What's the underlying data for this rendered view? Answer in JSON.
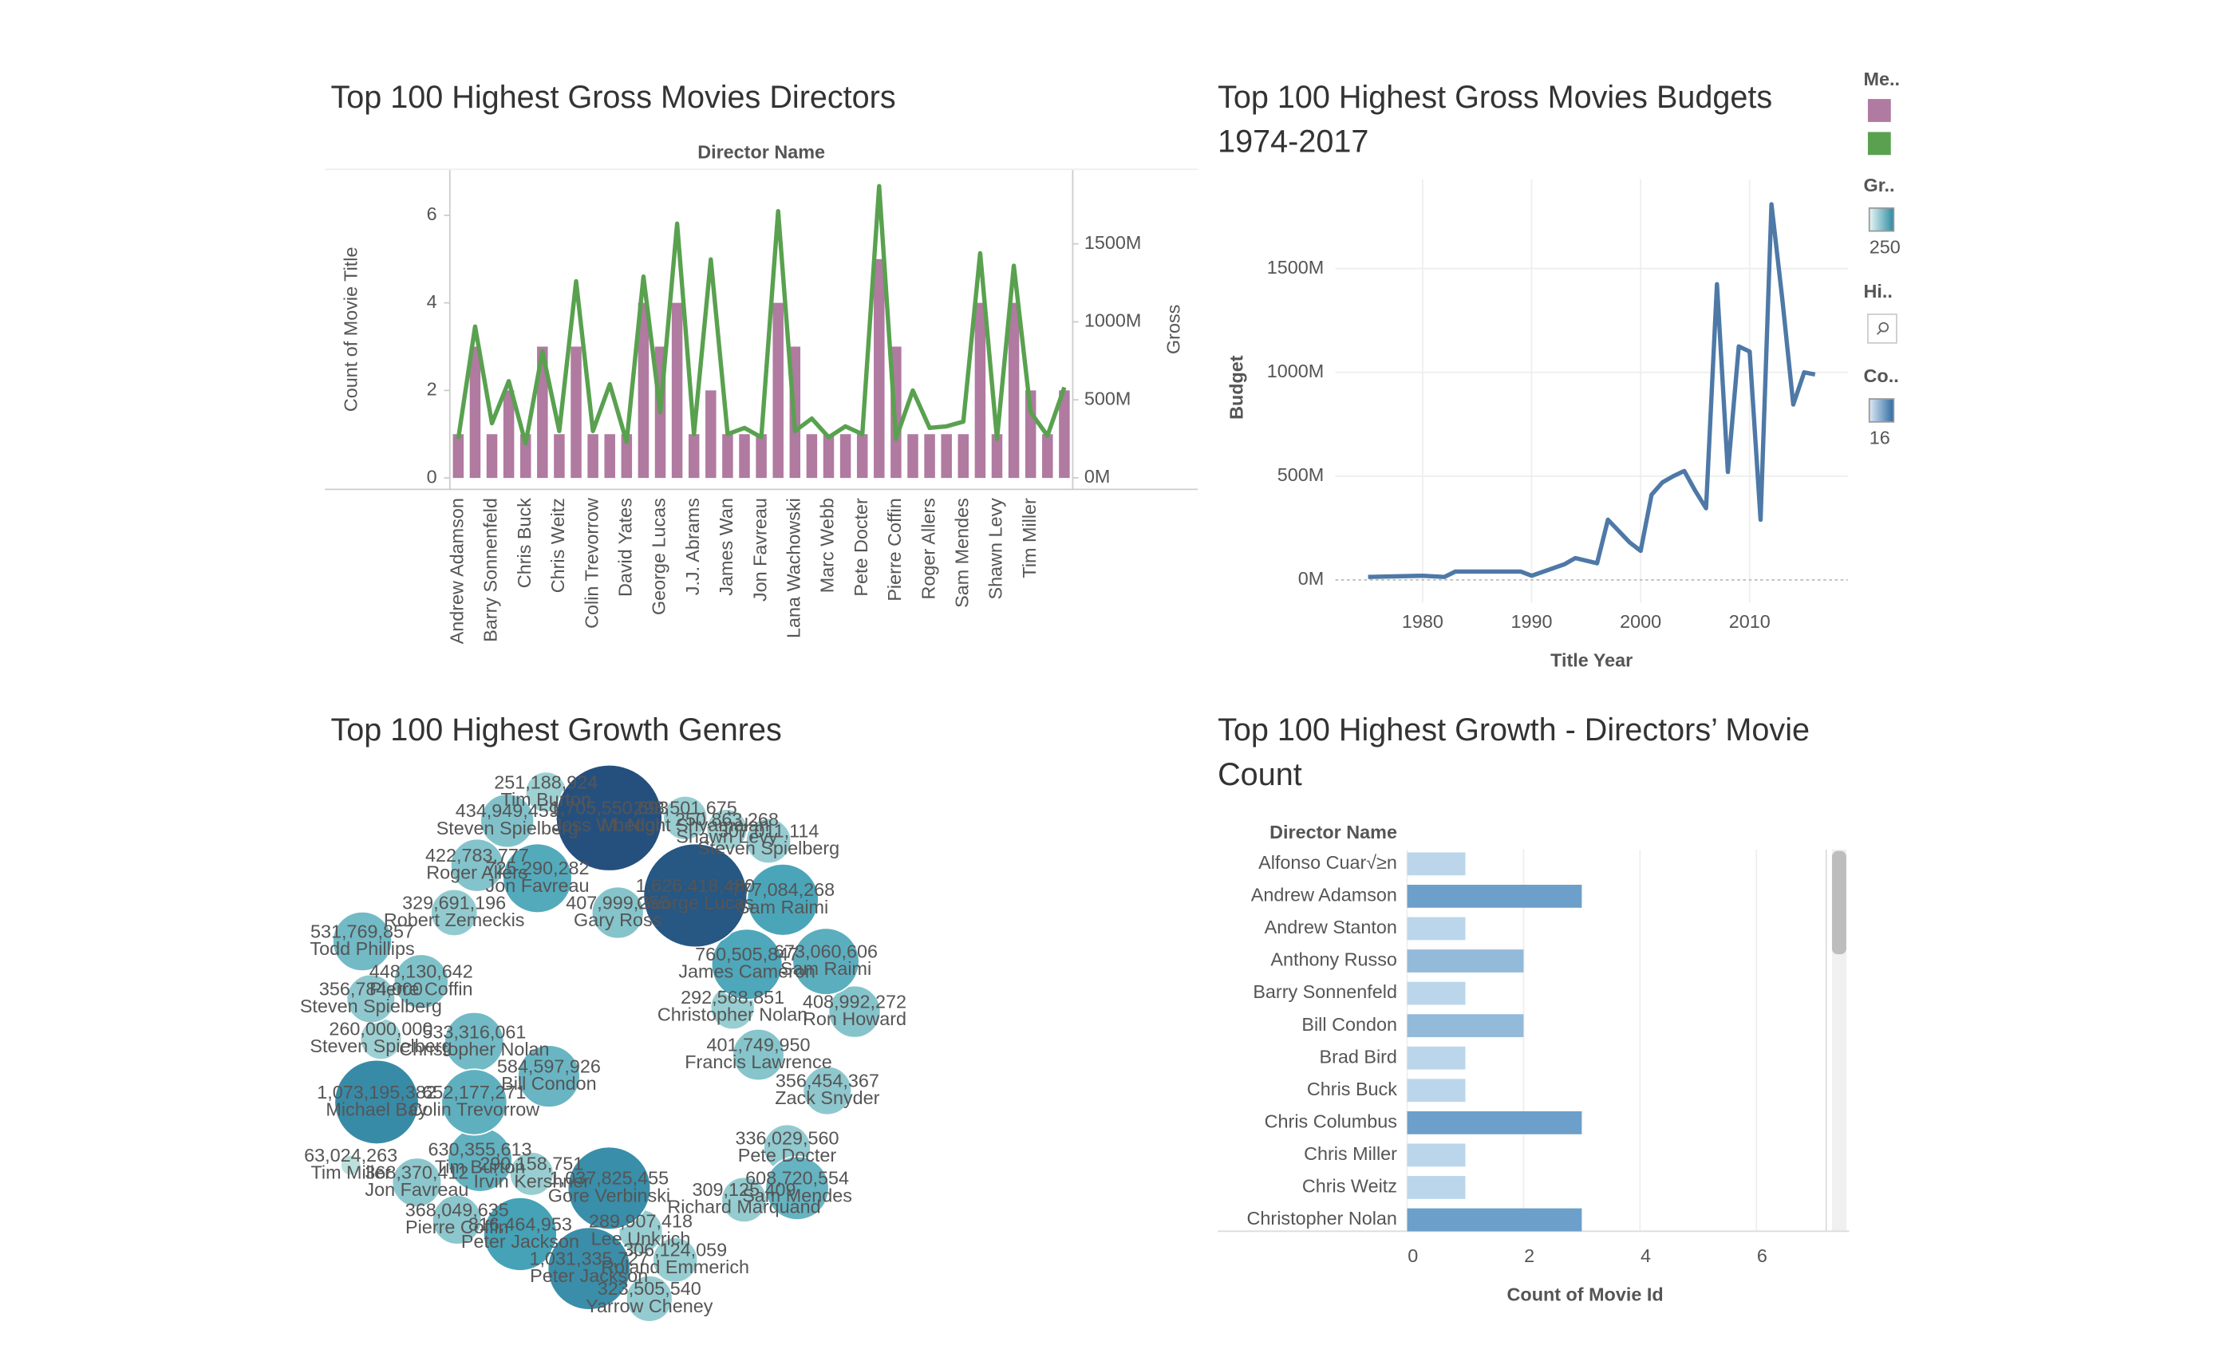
{
  "chart_data": [
    {
      "type": "bar",
      "title": "Top 100 Highest Gross Movies Directors",
      "x_label": "Director Name",
      "y_label": "Count of Movie Title",
      "y2_label": "Gross",
      "categories": [
        "Andrew Adamson",
        null,
        "Barry Sonnenfeld",
        null,
        "Chris Buck",
        null,
        "Chris Weitz",
        null,
        "Colin Trevorrow",
        null,
        "David Yates",
        null,
        "George Lucas",
        null,
        "J.J. Abrams",
        null,
        "James Wan",
        null,
        "Jon Favreau",
        null,
        "Lana Wachowski",
        null,
        "Marc Webb",
        null,
        "Pete Docter",
        null,
        "Pierre Coffin",
        null,
        "Roger Allers",
        null,
        "Sam Mendes",
        null,
        "Shawn Levy",
        null,
        "Tim Miller",
        null,
        null
      ],
      "series": [
        {
          "color": "#b07aa1",
          "values": [
            1,
            3,
            1,
            2,
            1,
            3,
            1,
            3,
            1,
            1,
            1,
            4,
            3,
            4,
            1,
            2,
            1,
            1,
            1,
            4,
            3,
            1,
            1,
            1,
            1,
            5,
            3,
            1,
            1,
            1,
            1,
            4,
            1,
            4,
            2,
            1,
            2
          ]
        },
        {
          "color": "#59a14f",
          "mark": "line",
          "axis": "y2",
          "values": [
            250000000,
            970000000,
            350000000,
            620000000,
            220000000,
            810000000,
            300000000,
            1260000000,
            300000000,
            600000000,
            230000000,
            1290000000,
            420000000,
            1630000000,
            280000000,
            1400000000,
            280000000,
            320000000,
            260000000,
            1710000000,
            300000000,
            380000000,
            260000000,
            330000000,
            280000000,
            1870000000,
            250000000,
            560000000,
            320000000,
            330000000,
            360000000,
            1440000000,
            250000000,
            1360000000,
            420000000,
            270000000,
            580000000
          ]
        }
      ],
      "ylim": [
        -0.26,
        7.05
      ],
      "yticks": [
        0,
        2,
        4,
        6
      ],
      "y2lim": [
        -74000000,
        1978000000
      ],
      "y2ticks": [
        {
          "value": 0,
          "label": "0M"
        },
        {
          "value": 500000000,
          "label": "500M"
        },
        {
          "value": 1000000000,
          "label": "1000M"
        },
        {
          "value": 1500000000,
          "label": "1500M"
        }
      ]
    },
    {
      "type": "line",
      "title": "Top 100 Highest Gross Movies Budgets 1974-2017",
      "x_label": "Title Year",
      "y_label": "Budget",
      "color": "#4e79a7",
      "grid": true,
      "x": [
        1975,
        1980,
        1982,
        1983,
        1989,
        1990,
        1993,
        1994,
        1996,
        1997,
        1999,
        2000,
        2001,
        2002,
        2003,
        2004,
        2005,
        2006,
        2007,
        2008,
        2009,
        2010,
        2011,
        2012,
        2013,
        2014,
        2015,
        2016
      ],
      "values": [
        14000000,
        20000000,
        14000000,
        40000000,
        40000000,
        20000000,
        75000000,
        105000000,
        80000000,
        290000000,
        180000000,
        140000000,
        410000000,
        470000000,
        500000000,
        525000000,
        430000000,
        345000000,
        1425000000,
        520000000,
        1125000000,
        1100000000,
        290000000,
        1810000000,
        1350000000,
        845000000,
        1000000000,
        990000000
      ],
      "xlim": [
        1972,
        2019
      ],
      "xticks": [
        1980,
        1990,
        2000,
        2010
      ],
      "ylim": [
        -110000000,
        1930000000
      ],
      "yticks": [
        {
          "value": 0,
          "label": "0M"
        },
        {
          "value": 500000000,
          "label": "500M"
        },
        {
          "value": 1000000000,
          "label": "1000M"
        },
        {
          "value": 1500000000,
          "label": "1500M"
        }
      ]
    },
    {
      "type": "bubble",
      "title": "Top 100 Highest Growth Genres",
      "colors": [
        "#c6e6e0",
        "#3f9fb5",
        "#25507e"
      ],
      "labels": [
        "Joss Whedon",
        "George Lucas",
        "Michael Bay",
        "Gore Verbinski",
        "Peter Jackson",
        "Tim Burton",
        "Steven Spielberg",
        "M. Night Shyamalan",
        "Shawn Levy",
        "Steven Spielberg",
        "Roger Allers",
        "Jon Favreau",
        "Sam Raimi",
        "Robert Zemeckis",
        "Gary Ross",
        "Todd Phillips",
        "Sam Raimi",
        "James Cameron",
        "Pierre Coffin",
        "Steven Spielberg",
        "Steven Spielberg",
        "Colin Trevorrow",
        "Tim Miller",
        "Jon Favreau",
        "Tim Burton",
        "Pierre Coffin",
        "Peter Jackson",
        "Lee Unkrich",
        "Roland Emmerich",
        "Yarrow Cheney",
        "Sam Mendes",
        "Richard Marquand",
        "Zack Snyder",
        "Ron Howard",
        "Christopher Nolan",
        "Francis Lawrence",
        "Bill Condon",
        "Christopher Nolan",
        "Pete Docter",
        "Irvin Kershner"
      ],
      "values": [
        1705550693,
        1626418480,
        1073195382,
        1037825455,
        1031335727,
        251188924,
        434949459,
        293501675,
        250863268,
        307011114,
        422783777,
        725290282,
        777084268,
        329691196,
        407999255,
        531769857,
        673060606,
        760505847,
        448130642,
        356784000,
        260000000,
        652177271,
        63024263,
        368370412,
        630355613,
        368049635,
        816464953,
        289907418,
        306124059,
        323505540,
        608720554,
        309125409,
        356454367,
        408992272,
        292568851,
        401749950,
        584597926,
        533316061,
        336029560,
        290158751
      ],
      "value_labels": [
        "1,705,550,693",
        "1,626,418,480",
        "1,073,195,382",
        "1,037,825,455",
        "1,031,335,727",
        "251,188,924",
        "434,949,459",
        "293,501,675",
        "250,863,268",
        "307,011,114",
        "422,783,777",
        "725,290,282",
        "777,084,268",
        "329,691,196",
        "407,999,255",
        "531,769,857",
        "673,060,606",
        "760,505,847",
        "448,130,642",
        "356,784,000",
        "260,000,000",
        "652,177,271",
        "63,024,263",
        "368,370,412",
        "630,355,613",
        "368,049,635",
        "816,464,953",
        "289,907,418",
        "306,124,059",
        "323,505,540",
        "608,720,554",
        "309,125,409",
        "356,454,367",
        "408,992,272",
        "292,568,851",
        "401,749,950",
        "584,597,926",
        "533,316,061",
        "336,029,560",
        "290,158,751"
      ]
    },
    {
      "type": "bar",
      "orientation": "horizontal",
      "title": "Top 100 Highest Growth - Directors’ Movie Count",
      "row_header": "Director Name",
      "x_label": "Count of Movie Id",
      "colors": [
        "#e3f1fa",
        "#6c9fca"
      ],
      "grid": true,
      "categories": [
        "Alfonso Cuar√≥n",
        "Andrew Adamson",
        "Andrew Stanton",
        "Anthony Russo",
        "Barry Sonnenfeld",
        "Bill Condon",
        "Brad Bird",
        "Chris Buck",
        "Chris Columbus",
        "Chris Miller",
        "Chris Weitz",
        "Christopher Nolan"
      ],
      "values": [
        1,
        3,
        1,
        2,
        1,
        2,
        1,
        1,
        3,
        1,
        1,
        3
      ],
      "xlim": [
        0,
        7.2
      ],
      "xticks": [
        0,
        2,
        4,
        6
      ]
    }
  ],
  "legend_panel": {
    "items": [
      {
        "title": "Me.."
      },
      {
        "title": "Gr..",
        "gradient": [
          "#e8f6f5",
          "#2c8aa0"
        ],
        "label": "250"
      },
      {
        "title": "Hi.."
      },
      {
        "title": "Co..",
        "gradient": [
          "#dde9f5",
          "#2f6aa0"
        ],
        "label": "16"
      }
    ]
  }
}
